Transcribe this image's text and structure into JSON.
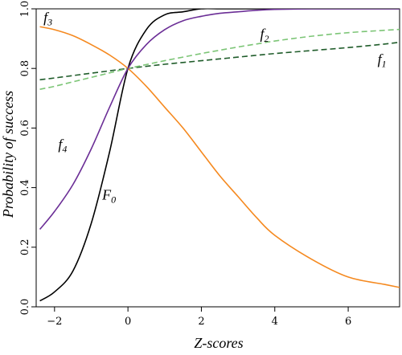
{
  "chart_data": {
    "type": "line",
    "xlabel": "Z-scores",
    "ylabel": "Probability of success",
    "xlim": [
      -2.5,
      7.4
    ],
    "ylim": [
      0.0,
      1.0
    ],
    "x_ticks": [
      -2,
      0,
      2,
      4,
      6
    ],
    "x_tick_labels": [
      "−2",
      "0",
      "2",
      "4",
      "6"
    ],
    "y_ticks": [
      0.0,
      0.2,
      0.4,
      0.6,
      0.8,
      1.0
    ],
    "y_tick_labels": [
      "0.0",
      "0.2",
      "0.4",
      "0.6",
      "0.8",
      "1.0"
    ],
    "grid": false,
    "legend": "none",
    "x": [
      -2.4,
      -2.0,
      -1.5,
      -1.0,
      -0.5,
      0.0,
      0.5,
      1.0,
      1.5,
      2.0,
      2.5,
      3.0,
      3.5,
      4.0,
      5.0,
      6.0,
      7.0,
      7.4
    ],
    "series": [
      {
        "name": "F0",
        "label_main": "F",
        "label_sub": "0",
        "color": "#000000",
        "dash": "solid",
        "values": [
          0.02,
          0.05,
          0.12,
          0.28,
          0.52,
          0.8,
          0.93,
          0.98,
          0.99,
          1.0,
          1.0,
          1.0,
          1.0,
          1.0,
          1.0,
          1.0,
          1.0,
          1.0
        ]
      },
      {
        "name": "f1",
        "label_main": "f",
        "label_sub": "1",
        "color": "#1f5c2a",
        "dash": "dashed",
        "values": [
          0.762,
          0.768,
          0.776,
          0.784,
          0.792,
          0.8,
          0.807,
          0.814,
          0.82,
          0.826,
          0.832,
          0.838,
          0.844,
          0.85,
          0.86,
          0.87,
          0.882,
          0.888
        ]
      },
      {
        "name": "f2",
        "label_main": "f",
        "label_sub": "2",
        "color": "#7cc576",
        "dash": "dashed",
        "values": [
          0.73,
          0.74,
          0.755,
          0.77,
          0.785,
          0.8,
          0.813,
          0.826,
          0.838,
          0.85,
          0.861,
          0.872,
          0.882,
          0.892,
          0.908,
          0.92,
          0.928,
          0.931
        ]
      },
      {
        "name": "f3",
        "label_main": "f",
        "label_sub": "3",
        "color": "#f5891f",
        "dash": "solid",
        "values": [
          0.94,
          0.93,
          0.91,
          0.88,
          0.845,
          0.8,
          0.74,
          0.67,
          0.6,
          0.52,
          0.44,
          0.37,
          0.3,
          0.24,
          0.16,
          0.1,
          0.075,
          0.065
        ]
      },
      {
        "name": "f4",
        "label_main": "f",
        "label_sub": "4",
        "color": "#6b2e96",
        "dash": "solid",
        "values": [
          0.26,
          0.32,
          0.41,
          0.53,
          0.67,
          0.8,
          0.88,
          0.93,
          0.96,
          0.975,
          0.985,
          0.99,
          0.995,
          0.998,
          1.0,
          1.0,
          1.0,
          1.0
        ]
      }
    ],
    "annotations": [
      {
        "series": "f3",
        "x": -2.3,
        "y": 0.955
      },
      {
        "series": "f2",
        "x": 3.6,
        "y": 0.9
      },
      {
        "series": "f1",
        "x": 6.8,
        "y": 0.815
      },
      {
        "series": "f4",
        "x": -1.9,
        "y": 0.53
      },
      {
        "series": "F0",
        "x": -0.7,
        "y": 0.36
      }
    ]
  }
}
